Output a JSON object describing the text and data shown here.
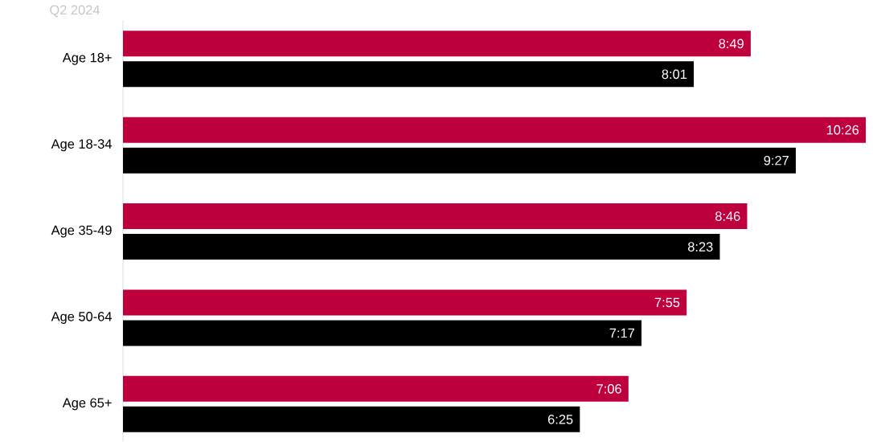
{
  "chart_data": {
    "type": "bar",
    "orientation": "horizontal",
    "title": "Q2 2024",
    "tick_labels": "y",
    "categories": [
      "Age 18+",
      "Age 18-34",
      "Age 35-49",
      "Age 50-64",
      "Age 65+"
    ],
    "series": [
      {
        "color": "#be003c",
        "values": [
          8.817,
          10.433,
          8.767,
          7.917,
          7.1
        ],
        "value_labels": [
          "8:49",
          "10:26",
          "8:46",
          "7:55",
          "7:06"
        ]
      },
      {
        "color": "#000000",
        "values": [
          8.017,
          9.45,
          8.383,
          7.283,
          6.417
        ],
        "value_labels": [
          "8:01",
          "9:27",
          "8:23",
          "7:17",
          "6:25"
        ]
      }
    ]
  }
}
